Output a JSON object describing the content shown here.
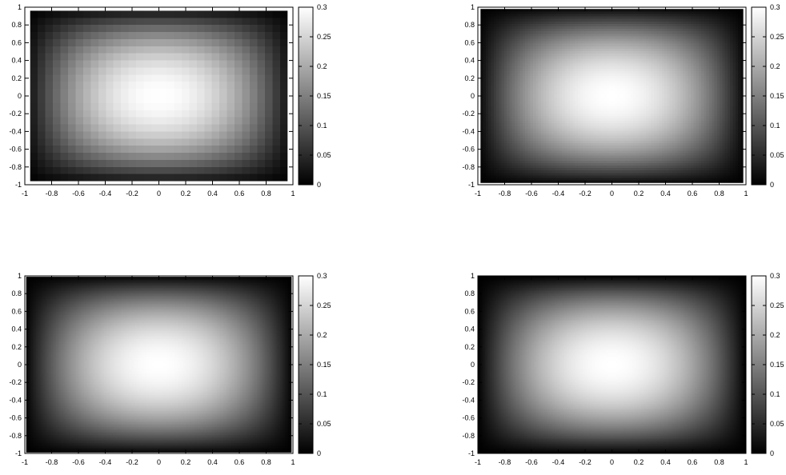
{
  "chart_data": [
    {
      "type": "heatmap",
      "colormap": "grayscale",
      "grid_cells": [
        34,
        24
      ],
      "x_range": [
        -1,
        1
      ],
      "y_range": [
        -1,
        1
      ],
      "data_extent": [
        -0.96,
        0.96,
        -0.96,
        0.96
      ],
      "z_range": [
        0,
        0.3
      ],
      "peak": {
        "x": 0,
        "y": 0,
        "z": 0.3
      },
      "x_ticks": [
        "-1",
        "-0.8",
        "-0.6",
        "-0.4",
        "-0.2",
        "0",
        "0.2",
        "0.4",
        "0.6",
        "0.8",
        "1"
      ],
      "y_ticks": [
        "1",
        "0.8",
        "0.6",
        "0.4",
        "0.2",
        "0",
        "-0.2",
        "-0.4",
        "-0.6",
        "-0.8",
        "-1"
      ],
      "colorbar_ticks": [
        "0.3",
        "0.25",
        "0.2",
        "0.15",
        "0.1",
        "0.05",
        "0"
      ]
    },
    {
      "type": "heatmap",
      "colormap": "grayscale",
      "grid_cells": [
        100,
        70
      ],
      "x_range": [
        -1,
        1
      ],
      "y_range": [
        -1,
        1
      ],
      "data_extent": [
        -0.98,
        0.98,
        -0.98,
        0.98
      ],
      "z_range": [
        0,
        0.3
      ],
      "peak": {
        "x": 0,
        "y": 0,
        "z": 0.3
      },
      "x_ticks": [
        "-1",
        "-0.8",
        "-0.6",
        "-0.4",
        "-0.2",
        "0",
        "0.2",
        "0.4",
        "0.6",
        "0.8",
        "1"
      ],
      "y_ticks": [
        "1",
        "0.8",
        "0.6",
        "0.4",
        "0.2",
        "0",
        "-0.2",
        "-0.4",
        "-0.6",
        "-0.8",
        "-1"
      ],
      "colorbar_ticks": [
        "0.3",
        "0.25",
        "0.2",
        "0.15",
        "0.1",
        "0.05",
        "0"
      ]
    },
    {
      "type": "heatmap",
      "colormap": "grayscale",
      "grid_cells": [
        160,
        110
      ],
      "x_range": [
        -1,
        1
      ],
      "y_range": [
        -1,
        1
      ],
      "data_extent": [
        -0.99,
        0.99,
        -0.99,
        0.99
      ],
      "z_range": [
        0,
        0.3
      ],
      "peak": {
        "x": 0,
        "y": 0,
        "z": 0.3
      },
      "x_ticks": [
        "-1",
        "-0.8",
        "-0.6",
        "-0.4",
        "-0.2",
        "0",
        "0.2",
        "0.4",
        "0.6",
        "0.8",
        "1"
      ],
      "y_ticks": [
        "1",
        "0.8",
        "0.6",
        "0.4",
        "0.2",
        "0",
        "-0.2",
        "-0.4",
        "-0.6",
        "-0.8",
        "-1"
      ],
      "colorbar_ticks": [
        "0.3",
        "0.25",
        "0.2",
        "0.15",
        "0.1",
        "0.05",
        "0"
      ]
    },
    {
      "type": "heatmap",
      "colormap": "grayscale",
      "grid_cells": [
        220,
        150
      ],
      "x_range": [
        -1,
        1
      ],
      "y_range": [
        -1,
        1
      ],
      "data_extent": [
        -1,
        1,
        -1,
        1
      ],
      "z_range": [
        0,
        0.3
      ],
      "peak": {
        "x": 0,
        "y": 0,
        "z": 0.3
      },
      "x_ticks": [
        "-1",
        "-0.8",
        "-0.6",
        "-0.4",
        "-0.2",
        "0",
        "0.2",
        "0.4",
        "0.6",
        "0.8",
        "1"
      ],
      "y_ticks": [
        "1",
        "0.8",
        "0.6",
        "0.4",
        "0.2",
        "0",
        "-0.2",
        "-0.4",
        "-0.6",
        "-0.8",
        "-1"
      ],
      "colorbar_ticks": [
        "0.3",
        "0.25",
        "0.2",
        "0.15",
        "0.1",
        "0.05",
        "0"
      ]
    }
  ]
}
